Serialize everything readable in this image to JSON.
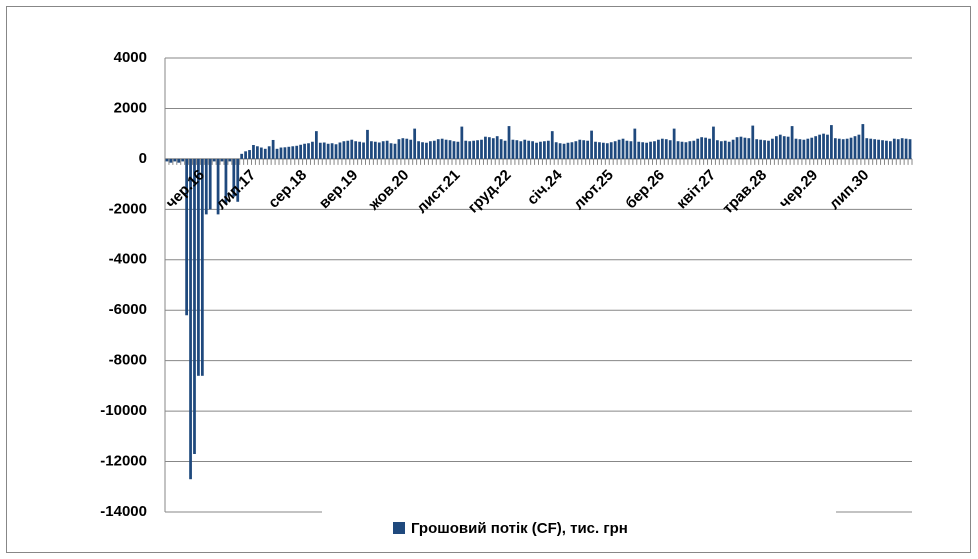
{
  "chart_data": {
    "type": "bar",
    "categories": [
      null,
      null,
      null,
      null,
      null,
      null,
      null,
      null,
      null,
      "чер.16",
      null,
      null,
      null,
      null,
      null,
      null,
      null,
      null,
      null,
      null,
      null,
      null,
      "лип.17",
      null,
      null,
      null,
      null,
      null,
      null,
      null,
      null,
      null,
      null,
      null,
      null,
      "сер.18",
      null,
      null,
      null,
      null,
      null,
      null,
      null,
      null,
      null,
      null,
      null,
      null,
      "вер.19",
      null,
      null,
      null,
      null,
      null,
      null,
      null,
      null,
      null,
      null,
      null,
      null,
      "жов.20",
      null,
      null,
      null,
      null,
      null,
      null,
      null,
      null,
      null,
      null,
      null,
      null,
      "лист.21",
      null,
      null,
      null,
      null,
      null,
      null,
      null,
      null,
      null,
      null,
      null,
      null,
      "груд.22",
      null,
      null,
      null,
      null,
      null,
      null,
      null,
      null,
      null,
      null,
      null,
      null,
      "січ.24",
      null,
      null,
      null,
      null,
      null,
      null,
      null,
      null,
      null,
      null,
      null,
      null,
      "лют.25",
      null,
      null,
      null,
      null,
      null,
      null,
      null,
      null,
      null,
      null,
      null,
      null,
      "бер.26",
      null,
      null,
      null,
      null,
      null,
      null,
      null,
      null,
      null,
      null,
      null,
      null,
      "квіт.27",
      null,
      null,
      null,
      null,
      null,
      null,
      null,
      null,
      null,
      null,
      null,
      null,
      "трав.28",
      null,
      null,
      null,
      null,
      null,
      null,
      null,
      null,
      null,
      null,
      null,
      null,
      "чер.29",
      null,
      null,
      null,
      null,
      null,
      null,
      null,
      null,
      null,
      null,
      null,
      null,
      "лип.30",
      null,
      null,
      null,
      null,
      null,
      null,
      null,
      null,
      null,
      null,
      null
    ],
    "series": [
      {
        "name": "Грошовий потік (CF), тис. грн",
        "color": "#1f497d",
        "values": [
          -100,
          -150,
          -100,
          -150,
          -100,
          -6200,
          -12700,
          -11700,
          -8600,
          -8600,
          -2200,
          -2000,
          -100,
          -2200,
          -100,
          -1800,
          -100,
          -1500,
          -1700,
          200,
          300,
          350,
          550,
          500,
          450,
          400,
          500,
          750,
          400,
          450,
          460,
          480,
          500,
          520,
          560,
          600,
          620,
          680,
          1100,
          640,
          650,
          600,
          620,
          580,
          650,
          700,
          720,
          760,
          700,
          680,
          650,
          1150,
          700,
          680,
          650,
          700,
          720,
          620,
          600,
          780,
          820,
          800,
          760,
          1200,
          700,
          660,
          640,
          700,
          720,
          780,
          800,
          760,
          740,
          700,
          680,
          1280,
          720,
          700,
          720,
          740,
          760,
          880,
          860,
          820,
          900,
          780,
          720,
          1300,
          760,
          740,
          700,
          760,
          720,
          700,
          640,
          680,
          700,
          720,
          1100,
          660,
          620,
          600,
          640,
          660,
          700,
          760,
          740,
          720,
          1120,
          680,
          660,
          640,
          620,
          660,
          700,
          760,
          800,
          720,
          700,
          1200,
          680,
          660,
          640,
          680,
          700,
          760,
          800,
          780,
          740,
          1200,
          700,
          680,
          660,
          700,
          720,
          800,
          860,
          840,
          800,
          1280,
          740,
          700,
          720,
          680,
          760,
          860,
          880,
          840,
          820,
          1320,
          780,
          760,
          740,
          720,
          800,
          900,
          960,
          900,
          880,
          1300,
          800,
          780,
          760,
          800,
          840,
          900,
          960,
          1000,
          960,
          1340,
          820,
          800,
          780,
          800,
          840,
          900,
          960,
          1380,
          820,
          800,
          780,
          760,
          740,
          720,
          700,
          800,
          780,
          820,
          800,
          780
        ]
      }
    ],
    "ylim": [
      -14000,
      4000
    ],
    "yticks": [
      -14000,
      -12000,
      -10000,
      -8000,
      -6000,
      -4000,
      -2000,
      0,
      2000,
      4000
    ],
    "grid": true,
    "legend": "bottom"
  }
}
